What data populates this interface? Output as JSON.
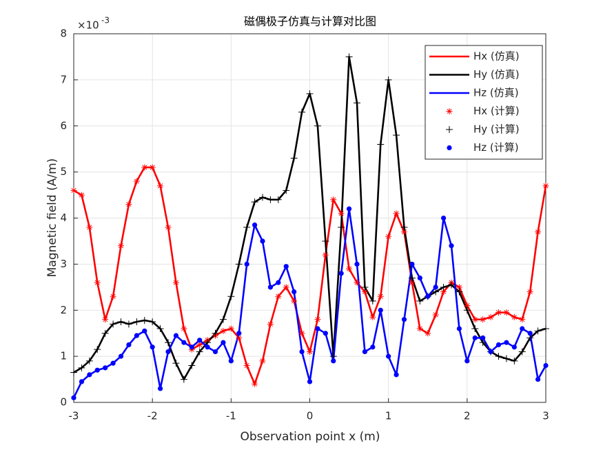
{
  "chart_data": {
    "type": "line",
    "title": "磁偶极子仿真与计算对比图",
    "x_label": "Observation point x (m)",
    "y_label": "Magnetic field (A/m)",
    "y_scale_base": "×10",
    "y_scale_exponent": "-3",
    "xlim": [
      -3,
      3
    ],
    "xticks": [
      -3,
      -2,
      -1,
      0,
      1,
      2,
      3
    ],
    "ylim": [
      0,
      8
    ],
    "yticks": [
      0,
      1,
      2,
      3,
      4,
      5,
      6,
      7,
      8
    ],
    "grid": true,
    "legend": "upper right",
    "x": [
      -3,
      -2.9,
      -2.8,
      -2.7,
      -2.6,
      -2.5,
      -2.4,
      -2.3,
      -2.2,
      -2.1,
      -2,
      -1.9,
      -1.8,
      -1.7,
      -1.6,
      -1.5,
      -1.4,
      -1.3,
      -1.2,
      -1.1,
      -1,
      -0.9,
      -0.8,
      -0.7,
      -0.6,
      -0.5,
      -0.4,
      -0.3,
      -0.2,
      -0.1,
      0,
      0.1,
      0.2,
      0.3,
      0.4,
      0.5,
      0.6,
      0.7,
      0.8,
      0.9,
      1,
      1.1,
      1.2,
      1.3,
      1.4,
      1.5,
      1.6,
      1.7,
      1.8,
      1.9,
      2,
      2.1,
      2.2,
      2.3,
      2.4,
      2.5,
      2.6,
      2.7,
      2.8,
      2.9,
      3
    ],
    "series": [
      {
        "name": "Hx (仿真)",
        "color": "#ff0000",
        "style": "line",
        "values": [
          4.6,
          4.5,
          3.8,
          2.6,
          1.8,
          2.3,
          3.4,
          4.3,
          4.8,
          5.1,
          5.1,
          4.7,
          3.8,
          2.6,
          1.6,
          1.15,
          1.25,
          1.35,
          1.45,
          1.55,
          1.6,
          1.4,
          0.8,
          0.4,
          0.9,
          1.7,
          2.3,
          2.5,
          2.2,
          1.5,
          1.1,
          1.8,
          3.2,
          4.4,
          4.1,
          2.9,
          2.6,
          2.4,
          1.85,
          2.3,
          3.6,
          4.1,
          3.7,
          2.6,
          1.6,
          1.5,
          1.9,
          2.4,
          2.6,
          2.5,
          2.1,
          1.8,
          1.8,
          1.85,
          1.95,
          1.95,
          1.85,
          1.8,
          2.4,
          3.7,
          4.7
        ]
      },
      {
        "name": "Hy (仿真)",
        "color": "#000000",
        "style": "line",
        "values": [
          0.65,
          0.75,
          0.9,
          1.15,
          1.5,
          1.7,
          1.75,
          1.7,
          1.75,
          1.78,
          1.75,
          1.6,
          1.3,
          0.85,
          0.5,
          0.8,
          1.1,
          1.3,
          1.5,
          1.8,
          2.3,
          3.0,
          3.8,
          4.35,
          4.45,
          4.4,
          4.4,
          4.6,
          5.3,
          6.3,
          6.7,
          6.0,
          3.5,
          1.0,
          3.8,
          7.5,
          6.5,
          2.5,
          2.2,
          5.6,
          7.0,
          5.8,
          3.8,
          2.7,
          2.2,
          2.3,
          2.4,
          2.5,
          2.55,
          2.4,
          2.0,
          1.6,
          1.3,
          1.1,
          1.0,
          0.95,
          0.9,
          1.1,
          1.4,
          1.55,
          1.6
        ]
      },
      {
        "name": "Hz (仿真)",
        "color": "#0000ff",
        "style": "line",
        "values": [
          0.1,
          0.45,
          0.6,
          0.7,
          0.75,
          0.85,
          1.0,
          1.25,
          1.45,
          1.55,
          1.2,
          0.3,
          1.1,
          1.45,
          1.3,
          1.2,
          1.35,
          1.2,
          1.1,
          1.3,
          0.9,
          1.5,
          3.0,
          3.85,
          3.5,
          2.5,
          2.6,
          2.95,
          2.4,
          1.1,
          0.45,
          1.6,
          1.5,
          0.9,
          2.8,
          4.2,
          3.0,
          1.1,
          1.2,
          2.0,
          1.0,
          0.6,
          1.8,
          3.0,
          2.7,
          2.3,
          2.5,
          4.0,
          3.4,
          1.6,
          0.9,
          1.4,
          1.4,
          1.1,
          1.25,
          1.3,
          1.2,
          1.6,
          1.5,
          0.5,
          0.8
        ]
      },
      {
        "name": "Hx (计算)",
        "color": "#ff0000",
        "style": "star",
        "values": [
          4.6,
          4.5,
          3.8,
          2.6,
          1.8,
          2.3,
          3.4,
          4.3,
          4.8,
          5.1,
          5.1,
          4.7,
          3.8,
          2.6,
          1.6,
          1.15,
          1.25,
          1.35,
          1.45,
          1.55,
          1.6,
          1.4,
          0.8,
          0.4,
          0.9,
          1.7,
          2.3,
          2.5,
          2.2,
          1.5,
          1.1,
          1.8,
          3.2,
          4.4,
          4.1,
          2.9,
          2.6,
          2.4,
          1.85,
          2.3,
          3.6,
          4.1,
          3.7,
          2.6,
          1.6,
          1.5,
          1.9,
          2.4,
          2.6,
          2.5,
          2.1,
          1.8,
          1.8,
          1.85,
          1.95,
          1.95,
          1.85,
          1.8,
          2.4,
          3.7,
          4.7
        ]
      },
      {
        "name": "Hy (计算)",
        "color": "#000000",
        "style": "plus",
        "values": [
          0.65,
          0.75,
          0.9,
          1.15,
          1.5,
          1.7,
          1.75,
          1.7,
          1.75,
          1.78,
          1.75,
          1.6,
          1.3,
          0.85,
          0.5,
          0.8,
          1.1,
          1.3,
          1.5,
          1.8,
          2.3,
          3.0,
          3.8,
          4.35,
          4.45,
          4.4,
          4.4,
          4.6,
          5.3,
          6.3,
          6.7,
          6.0,
          3.5,
          1.0,
          3.8,
          7.5,
          6.5,
          2.5,
          2.2,
          5.6,
          7.0,
          5.8,
          3.8,
          2.7,
          2.2,
          2.3,
          2.4,
          2.5,
          2.55,
          2.4,
          2.0,
          1.6,
          1.3,
          1.1,
          1.0,
          0.95,
          0.9,
          1.1,
          1.4,
          1.55,
          1.6
        ]
      },
      {
        "name": "Hz (计算)",
        "color": "#0000ff",
        "style": "circle",
        "values": [
          0.1,
          0.45,
          0.6,
          0.7,
          0.75,
          0.85,
          1.0,
          1.25,
          1.45,
          1.55,
          1.2,
          0.3,
          1.1,
          1.45,
          1.3,
          1.2,
          1.35,
          1.2,
          1.1,
          1.3,
          0.9,
          1.5,
          3.0,
          3.85,
          3.5,
          2.5,
          2.6,
          2.95,
          2.4,
          1.1,
          0.45,
          1.6,
          1.5,
          0.9,
          2.8,
          4.2,
          3.0,
          1.1,
          1.2,
          2.0,
          1.0,
          0.6,
          1.8,
          3.0,
          2.7,
          2.3,
          2.5,
          4.0,
          3.4,
          1.6,
          0.9,
          1.4,
          1.4,
          1.1,
          1.25,
          1.3,
          1.2,
          1.6,
          1.5,
          0.5,
          0.8
        ]
      }
    ]
  }
}
